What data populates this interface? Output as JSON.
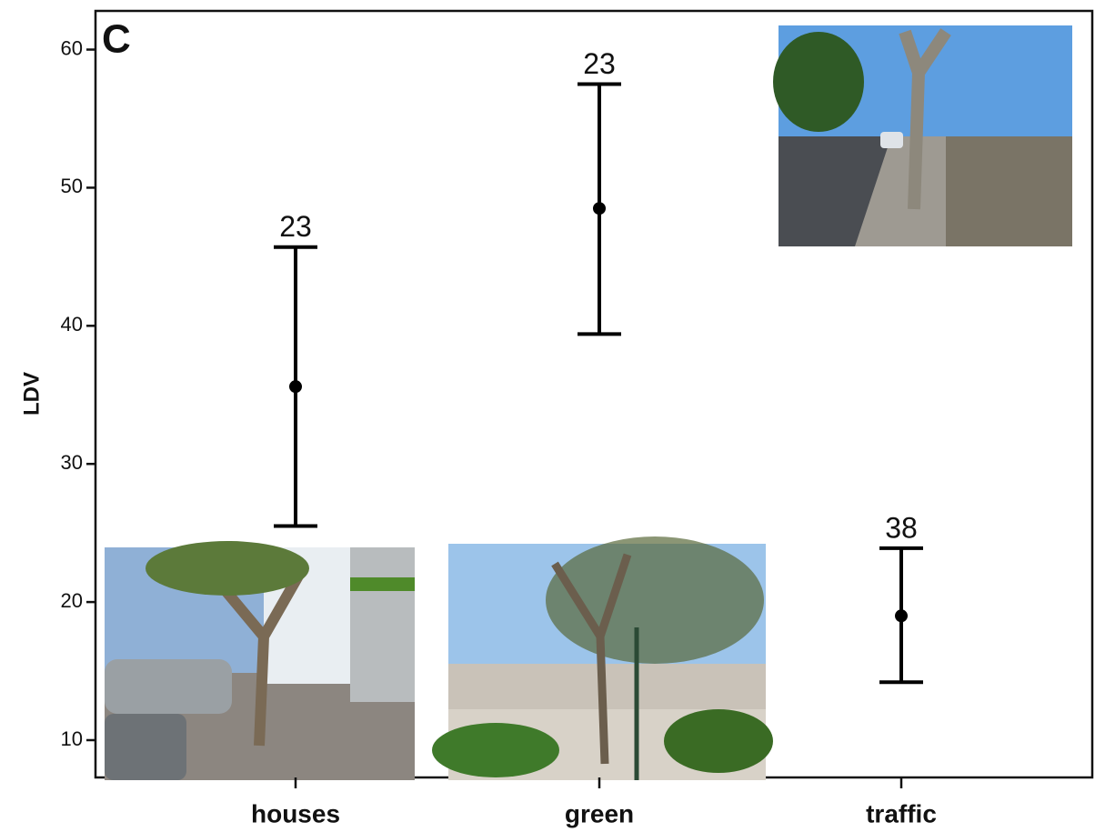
{
  "chart_data": {
    "type": "errorbar",
    "panel_label": "C",
    "ylabel": "LDV",
    "categories": [
      "houses",
      "green",
      "traffic"
    ],
    "values": [
      35.6,
      48.5,
      19.0
    ],
    "lower": [
      25.5,
      39.4,
      14.2
    ],
    "upper": [
      45.7,
      57.5,
      23.9
    ],
    "n": [
      23,
      23,
      38
    ],
    "color": "#000000",
    "ylim": [
      7.3,
      62.8
    ],
    "yticks": [
      10,
      20,
      30,
      40,
      50,
      60
    ]
  }
}
